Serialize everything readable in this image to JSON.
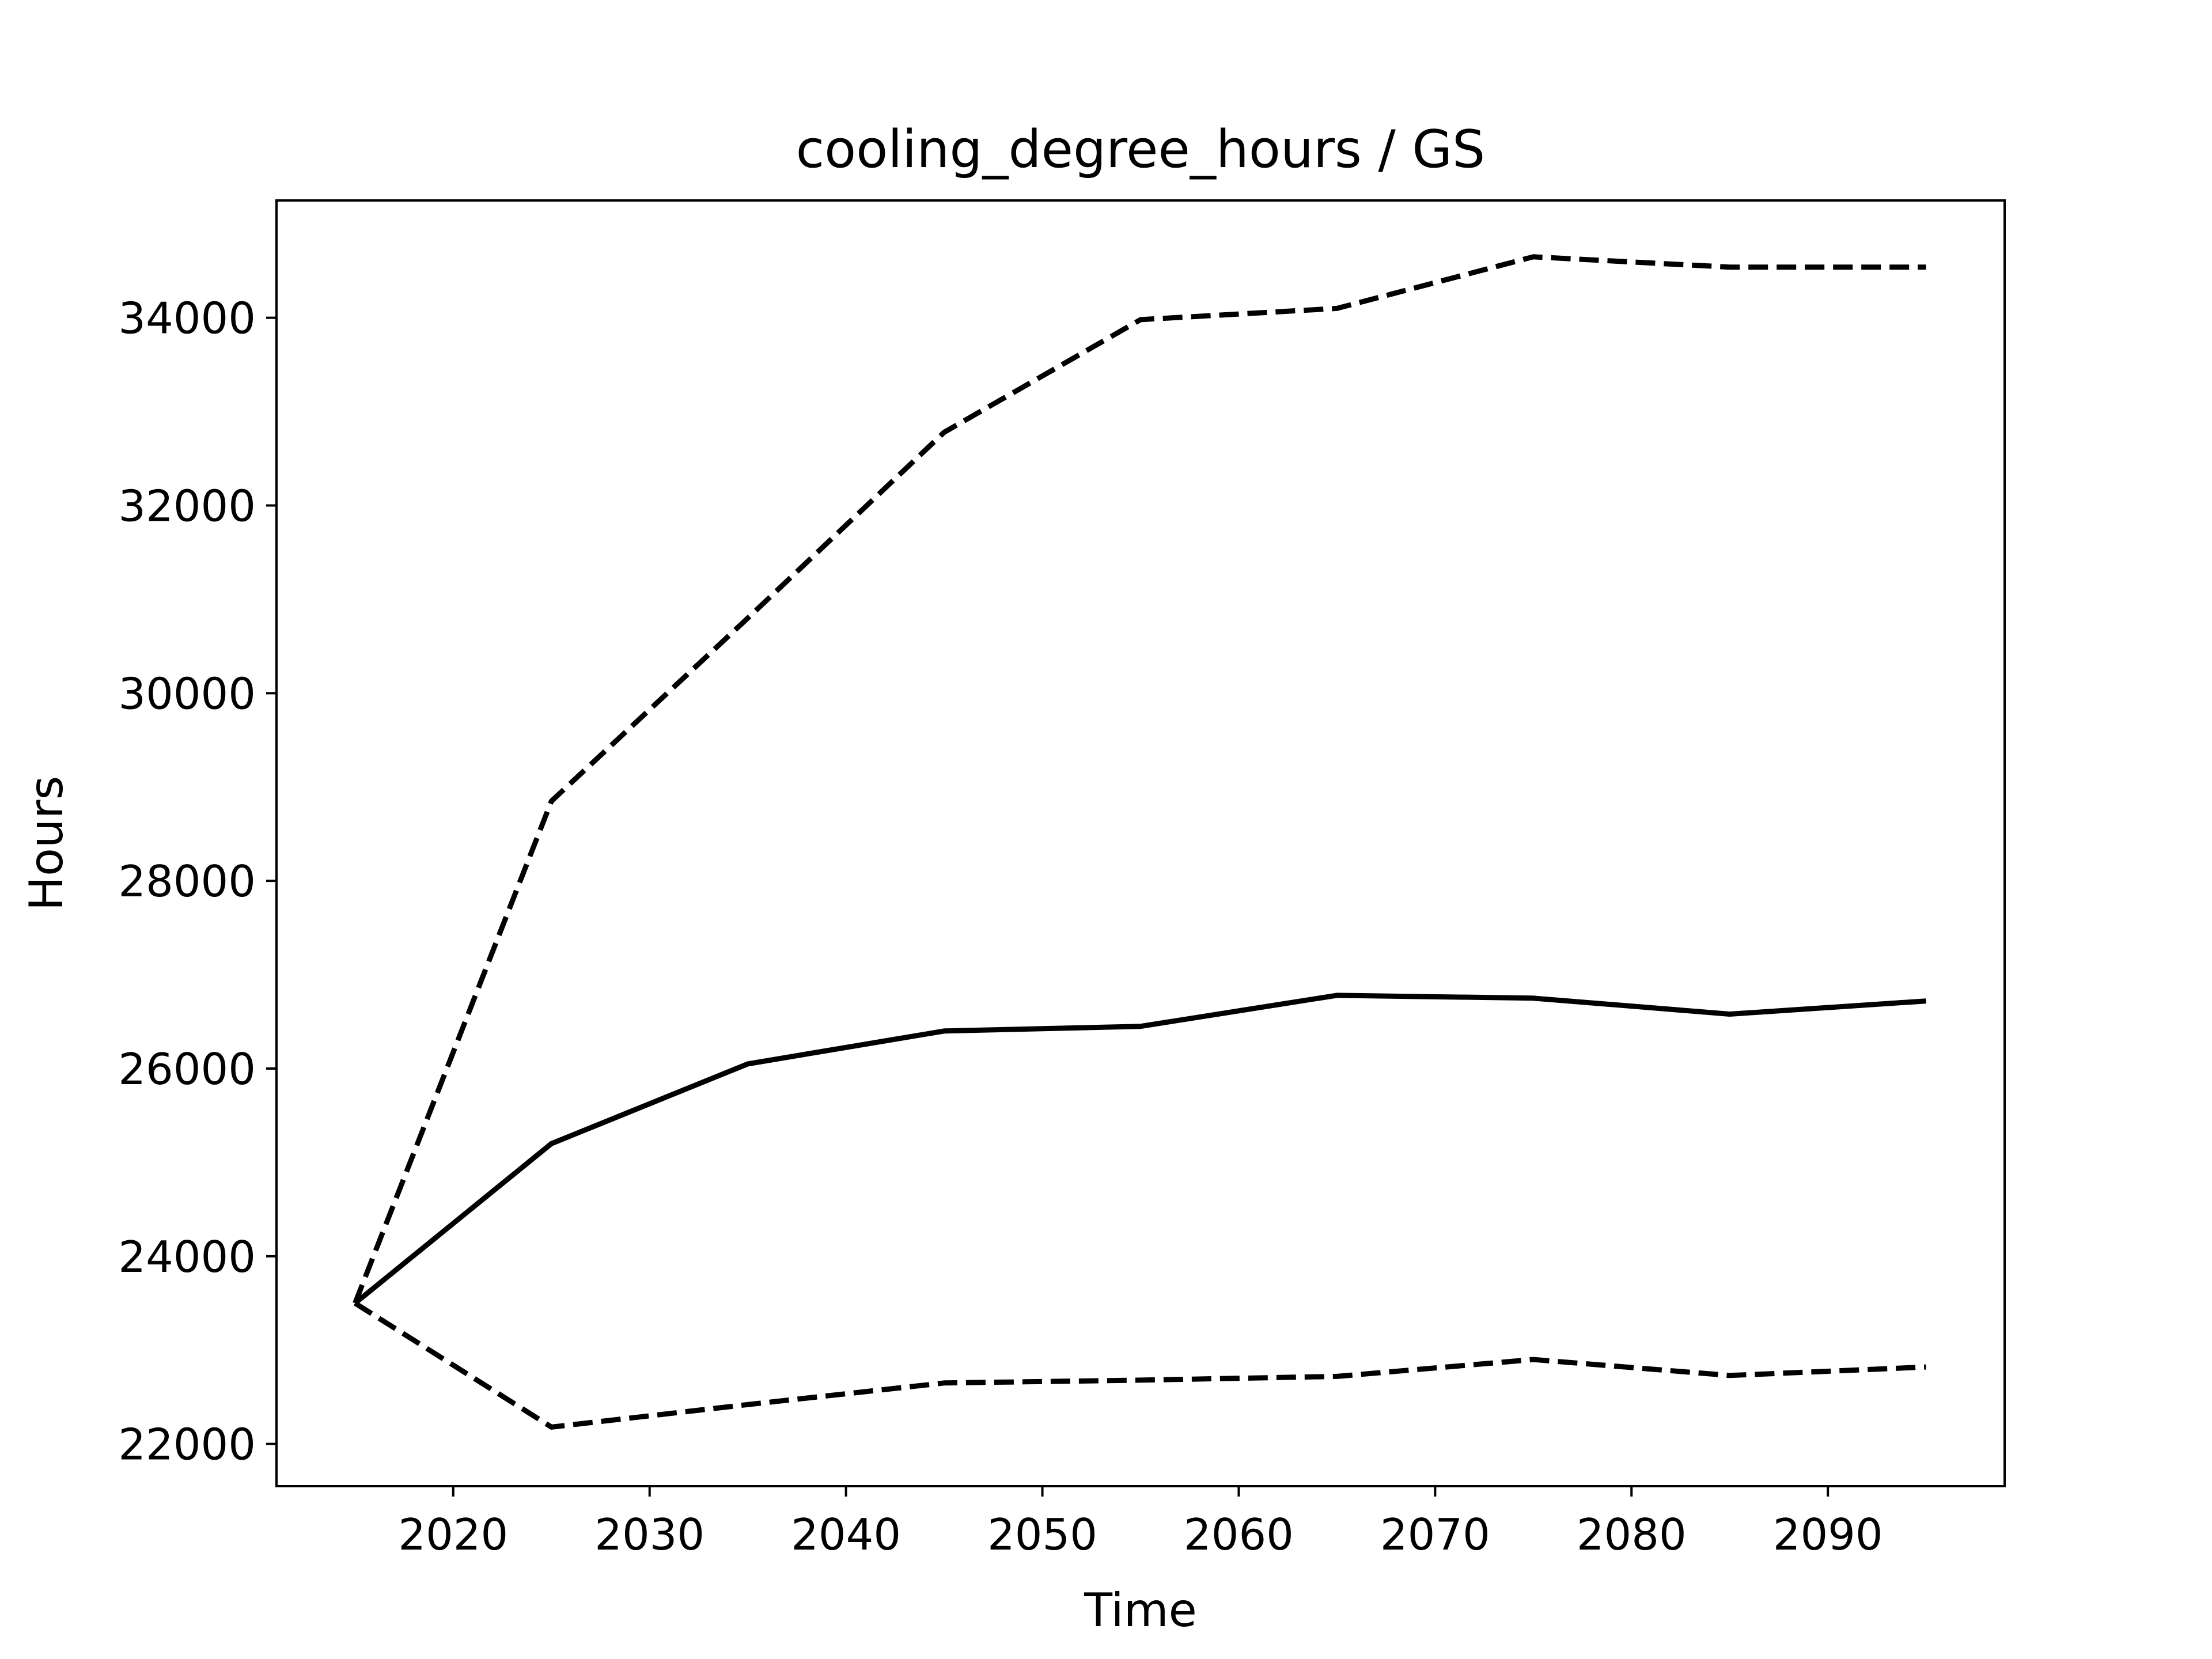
{
  "chart_data": {
    "type": "line",
    "title": "cooling_degree_hours / GS",
    "xlabel": "Time",
    "ylabel": "Hours",
    "x": [
      2015,
      2025,
      2035,
      2045,
      2055,
      2065,
      2075,
      2085,
      2095
    ],
    "xlim": [
      2011,
      2099
    ],
    "ylim": [
      21550,
      35250
    ],
    "xticks": [
      2020,
      2030,
      2040,
      2050,
      2060,
      2070,
      2080,
      2090
    ],
    "yticks": [
      22000,
      24000,
      26000,
      28000,
      30000,
      32000,
      34000
    ],
    "grid": false,
    "series": [
      {
        "style": "solid",
        "values": [
          23500,
          25200,
          26050,
          26400,
          26450,
          26780,
          26750,
          26580,
          26720
        ]
      },
      {
        "style": "dashed",
        "values": [
          23500,
          28850,
          30800,
          32780,
          33980,
          34100,
          34650,
          34540,
          34540
        ]
      },
      {
        "style": "dashed",
        "values": [
          23500,
          22180,
          22420,
          22650,
          22680,
          22720,
          22900,
          22730,
          22820
        ]
      }
    ],
    "colors": {
      "line": "#000000",
      "axes": "#000000",
      "background": "#ffffff"
    }
  }
}
